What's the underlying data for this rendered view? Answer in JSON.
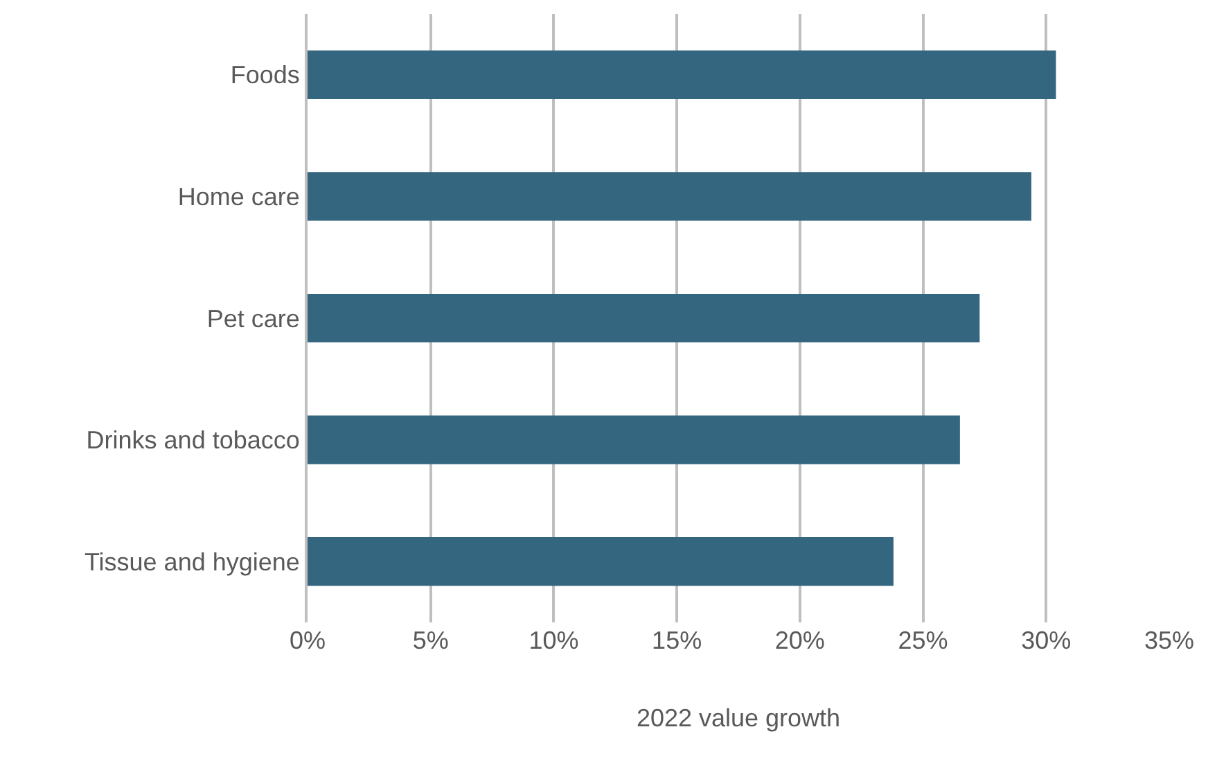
{
  "chart_data": {
    "type": "bar",
    "orientation": "horizontal",
    "xlabel": "2022 value growth",
    "categories": [
      "Foods",
      "Home care",
      "Pet care",
      "Drinks and tobacco",
      "Tissue and hygiene"
    ],
    "values": [
      30.4,
      29.4,
      27.3,
      26.5,
      23.8
    ],
    "color": "#34667f",
    "xlim": [
      0,
      35
    ],
    "xticks": [
      {
        "value": 0,
        "label": "0%"
      },
      {
        "value": 5,
        "label": "5%"
      },
      {
        "value": 10,
        "label": "10%"
      },
      {
        "value": 15,
        "label": "15%"
      },
      {
        "value": 20,
        "label": "20%"
      },
      {
        "value": 25,
        "label": "25%"
      },
      {
        "value": 30,
        "label": "30%"
      },
      {
        "value": 35,
        "label": "35%"
      }
    ],
    "grid": "x",
    "legend": false
  }
}
